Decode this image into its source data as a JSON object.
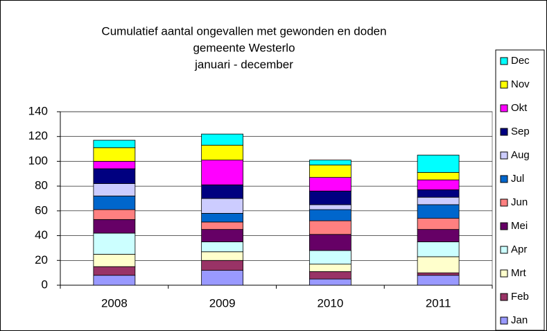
{
  "chart_data": {
    "type": "bar",
    "stacked": true,
    "title": [
      "Cumulatief aantal ongevallen met gewonden en doden",
      "gemeente Westerlo",
      "januari - december"
    ],
    "categories": [
      "2008",
      "2009",
      "2010",
      "2011"
    ],
    "ylim": [
      0,
      140
    ],
    "yticks": [
      0,
      20,
      40,
      60,
      80,
      100,
      120,
      140
    ],
    "grid": true,
    "legend": "right",
    "series": [
      {
        "name": "Jan",
        "color": "#9999ff",
        "values": [
          8,
          12,
          5,
          8
        ]
      },
      {
        "name": "Feb",
        "color": "#993366",
        "values": [
          7,
          8,
          6,
          2
        ]
      },
      {
        "name": "Mrt",
        "color": "#ffffcc",
        "values": [
          10,
          7,
          6,
          13
        ]
      },
      {
        "name": "Apr",
        "color": "#ccffff",
        "values": [
          17,
          8,
          11,
          12
        ]
      },
      {
        "name": "Mei",
        "color": "#660066",
        "values": [
          11,
          10,
          13,
          10
        ]
      },
      {
        "name": "Jun",
        "color": "#ff8080",
        "values": [
          8,
          6,
          11,
          9
        ]
      },
      {
        "name": "Jul",
        "color": "#0066cc",
        "values": [
          11,
          7,
          9,
          11
        ]
      },
      {
        "name": "Aug",
        "color": "#ccccff",
        "values": [
          10,
          12,
          4,
          6
        ]
      },
      {
        "name": "Sep",
        "color": "#000080",
        "values": [
          12,
          11,
          11,
          6
        ]
      },
      {
        "name": "Okt",
        "color": "#ff00ff",
        "values": [
          6,
          20,
          11,
          8
        ]
      },
      {
        "name": "Nov",
        "color": "#ffff00",
        "values": [
          11,
          12,
          10,
          6
        ]
      },
      {
        "name": "Dec",
        "color": "#00ffff",
        "values": [
          6,
          9,
          4,
          14
        ]
      }
    ]
  }
}
